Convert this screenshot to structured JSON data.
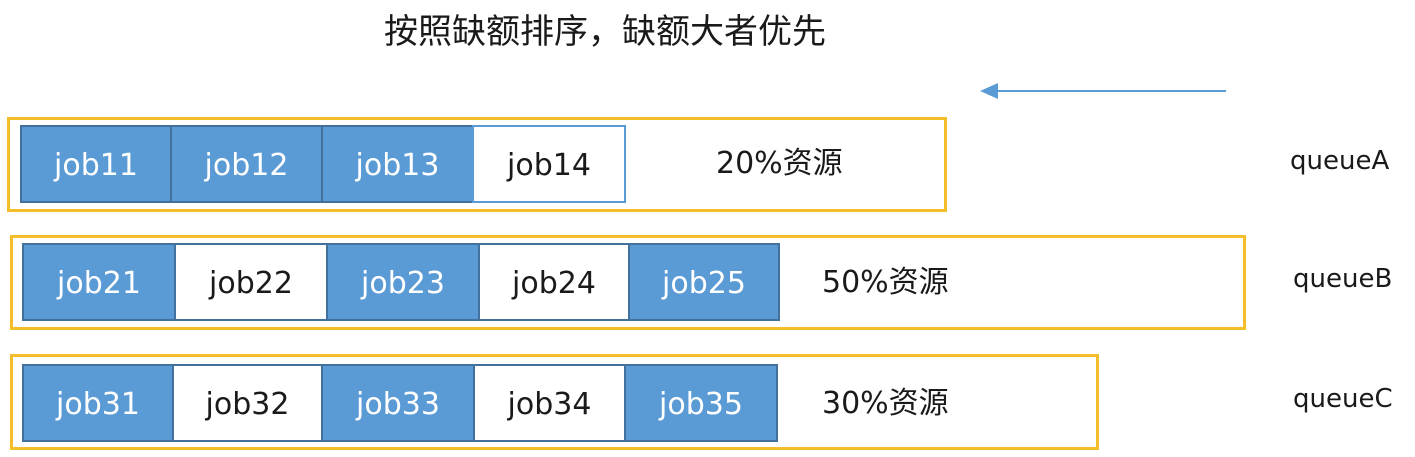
{
  "title": "按照缺额排序，缺额大者优先",
  "arrow": {
    "direction": "left",
    "color": "#5b9bd5"
  },
  "colors": {
    "job_filled": "#5b9bd5",
    "job_border": "#41719c",
    "queue_border": "#f4be2a"
  },
  "queues": [
    {
      "name": "queueA",
      "resource": "20%资源",
      "jobs": [
        {
          "label": "job11",
          "filled": true
        },
        {
          "label": "job12",
          "filled": true
        },
        {
          "label": "job13",
          "filled": true
        },
        {
          "label": "job14",
          "filled": false
        }
      ]
    },
    {
      "name": "queueB",
      "resource": "50%资源",
      "jobs": [
        {
          "label": "job21",
          "filled": true
        },
        {
          "label": "job22",
          "filled": false
        },
        {
          "label": "job23",
          "filled": true
        },
        {
          "label": "job24",
          "filled": false
        },
        {
          "label": "job25",
          "filled": true
        }
      ]
    },
    {
      "name": "queueC",
      "resource": "30%资源",
      "jobs": [
        {
          "label": "job31",
          "filled": true
        },
        {
          "label": "job32",
          "filled": false
        },
        {
          "label": "job33",
          "filled": true
        },
        {
          "label": "job34",
          "filled": false
        },
        {
          "label": "job35",
          "filled": true
        }
      ]
    }
  ]
}
